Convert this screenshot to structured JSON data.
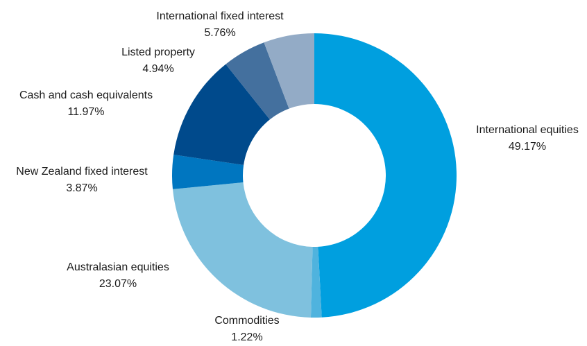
{
  "chart_data": {
    "type": "pie",
    "title": "",
    "donut": true,
    "legend": "none",
    "slices": [
      {
        "name": "International equities",
        "label": "49.17%",
        "value": 49.17,
        "color": "#009fdf"
      },
      {
        "name": "Commodities",
        "label": "1.22%",
        "value": 1.22,
        "color": "#4fb3de"
      },
      {
        "name": "Australasian equities",
        "label": "23.07%",
        "value": 23.07,
        "color": "#7fc1de"
      },
      {
        "name": "New Zealand fixed interest",
        "label": "3.87%",
        "value": 3.87,
        "color": "#0076c0"
      },
      {
        "name": "Cash and cash equivalents",
        "label": "11.97%",
        "value": 11.97,
        "color": "#004a8c"
      },
      {
        "name": "Listed property",
        "label": "4.94%",
        "value": 4.94,
        "color": "#44709e"
      },
      {
        "name": "International fixed interest",
        "label": "5.76%",
        "value": 5.76,
        "color": "#93abc6"
      }
    ]
  }
}
